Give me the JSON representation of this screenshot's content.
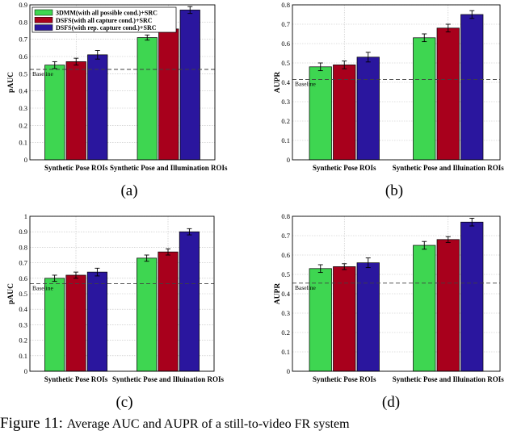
{
  "figure": {
    "caption_prefix": "Figure 11:",
    "caption_text": "Average AUC and AUPR of a still-to-video FR system"
  },
  "colors": {
    "series": [
      "#3ed651",
      "#a8001c",
      "#2a169e"
    ],
    "grid": "#bfbfbf",
    "baseline": "#404040"
  },
  "chart_data": [
    {
      "type": "bar",
      "panel_label": "(a)",
      "ylabel": "pAUC",
      "ylim": [
        0,
        0.9
      ],
      "yticks": [
        "0",
        "0.1",
        "0.2",
        "0.3",
        "0.4",
        "0.5",
        "0.6",
        "0.7",
        "0.8",
        "0.9"
      ],
      "categories": [
        "Synthetic Pose ROIs",
        "Synthetic Pose and Illumination ROIs"
      ],
      "baseline": {
        "label": "Baseline",
        "value": 0.525
      },
      "legend": true,
      "series": [
        {
          "name": "3DMM(with all possible cond.)+SRC",
          "values": [
            0.55,
            0.71
          ],
          "errors": [
            0.02,
            0.015
          ]
        },
        {
          "name": "DSFS(with all capture cond.)+SRC",
          "values": [
            0.57,
            0.76
          ],
          "errors": [
            0.02,
            0.018
          ]
        },
        {
          "name": "DSFS(with rep. capture cond.)+SRC",
          "values": [
            0.61,
            0.87
          ],
          "errors": [
            0.025,
            0.02
          ]
        }
      ]
    },
    {
      "type": "bar",
      "panel_label": "(b)",
      "ylabel": "AUPR",
      "ylim": [
        0,
        0.8
      ],
      "yticks": [
        "0",
        "0.1",
        "0.2",
        "0.3",
        "0.4",
        "0.5",
        "0.6",
        "0.7",
        "0.8"
      ],
      "categories": [
        "Synthetic Pose ROIs",
        "Synthetic Pose and Illuination ROIs"
      ],
      "baseline": {
        "label": "Baseline",
        "value": 0.415
      },
      "legend": false,
      "series": [
        {
          "name": "3DMM(with all possible cond.)+SRC",
          "values": [
            0.48,
            0.63
          ],
          "errors": [
            0.02,
            0.02
          ]
        },
        {
          "name": "DSFS(with all capture cond.)+SRC",
          "values": [
            0.49,
            0.68
          ],
          "errors": [
            0.02,
            0.02
          ]
        },
        {
          "name": "DSFS(with rep. capture cond.)+SRC",
          "values": [
            0.53,
            0.75
          ],
          "errors": [
            0.025,
            0.02
          ]
        }
      ]
    },
    {
      "type": "bar",
      "panel_label": "(c)",
      "ylabel": "pAUC",
      "ylim": [
        0,
        1.0
      ],
      "yticks": [
        "0",
        "0.1",
        "0.2",
        "0.3",
        "0.4",
        "0.5",
        "0.6",
        "0.7",
        "0.8",
        "0.9",
        "1"
      ],
      "categories": [
        "Synthetic Pose ROIs",
        "Synthetic Pose and Illuination ROIs"
      ],
      "baseline": {
        "label": "Baseline",
        "value": 0.565
      },
      "legend": false,
      "series": [
        {
          "name": "3DMM(with all possible cond.)+SRC",
          "values": [
            0.6,
            0.73
          ],
          "errors": [
            0.02,
            0.02
          ]
        },
        {
          "name": "DSFS(with all capture cond.)+SRC",
          "values": [
            0.62,
            0.77
          ],
          "errors": [
            0.02,
            0.02
          ]
        },
        {
          "name": "DSFS(with rep. capture cond.)+SRC",
          "values": [
            0.64,
            0.9
          ],
          "errors": [
            0.025,
            0.02
          ]
        }
      ]
    },
    {
      "type": "bar",
      "panel_label": "(d)",
      "ylabel": "AUPR",
      "ylim": [
        0,
        0.8
      ],
      "yticks": [
        "0",
        "0.1",
        "0.2",
        "0.3",
        "0.4",
        "0.5",
        "0.6",
        "0.7",
        "0.8"
      ],
      "categories": [
        "Synthetic Pose ROIs",
        "Synthetic Pose and Illuination ROIs"
      ],
      "baseline": {
        "label": "Baseline",
        "value": 0.455
      },
      "legend": false,
      "series": [
        {
          "name": "3DMM(with all possible cond.)+SRC",
          "values": [
            0.53,
            0.65
          ],
          "errors": [
            0.02,
            0.02
          ]
        },
        {
          "name": "DSFS(with all capture cond.)+SRC",
          "values": [
            0.54,
            0.68
          ],
          "errors": [
            0.015,
            0.015
          ]
        },
        {
          "name": "DSFS(with rep. capture cond.)+SRC",
          "values": [
            0.56,
            0.77
          ],
          "errors": [
            0.025,
            0.02
          ]
        }
      ]
    }
  ]
}
